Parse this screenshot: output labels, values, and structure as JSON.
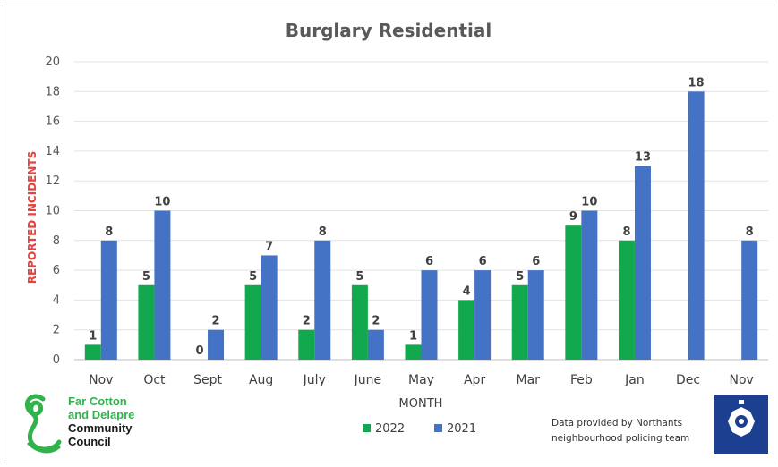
{
  "chart_data": {
    "type": "bar",
    "title": "Burglary Residential",
    "xlabel": "MONTH",
    "ylabel": "REPORTED INCIDENTS",
    "ylim": [
      0,
      20
    ],
    "ytick_step": 2,
    "grid": true,
    "legend_position": "bottom",
    "categories": [
      "Nov",
      "Oct",
      "Sept",
      "Aug",
      "July",
      "June",
      "May",
      "Apr",
      "Mar",
      "Feb",
      "Jan",
      "Dec",
      "Nov"
    ],
    "series": [
      {
        "name": "2022",
        "color": "#12a94e",
        "values": [
          1,
          5,
          0,
          5,
          2,
          5,
          1,
          4,
          5,
          9,
          8,
          null,
          null
        ]
      },
      {
        "name": "2021",
        "color": "#4472c4",
        "values": [
          8,
          10,
          2,
          7,
          8,
          2,
          6,
          6,
          6,
          10,
          13,
          18,
          8
        ]
      }
    ]
  },
  "logo": {
    "line1": "Far Cotton",
    "line2": "and Delapre",
    "line3": "Community",
    "line4": "Council",
    "icon": "swan-logo-icon",
    "color": "#2fb34a"
  },
  "credit": {
    "line1": "Data provided by Northants",
    "line2": "neighbourhood policing team",
    "badge_icon": "police-badge-icon"
  }
}
